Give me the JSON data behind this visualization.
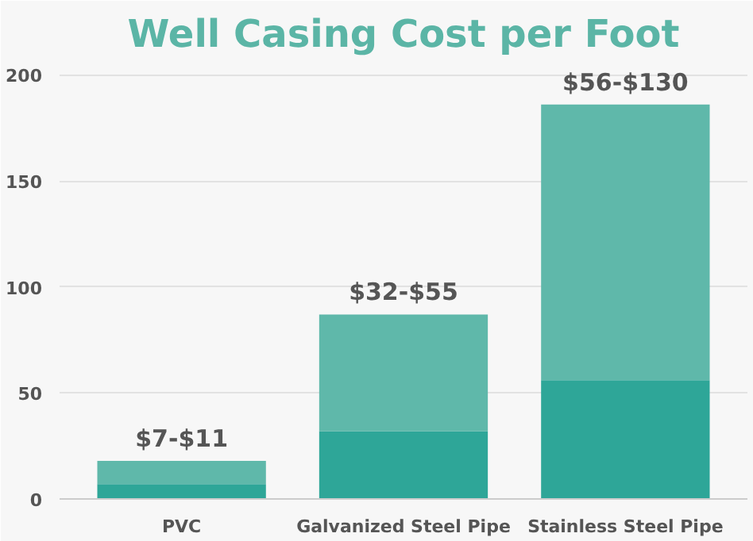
{
  "chart_data": {
    "type": "bar",
    "title": "Well Casing Cost per Foot",
    "categories": [
      "PVC",
      "Galvanized Steel Pipe",
      "Stainless Steel Pipe"
    ],
    "stacked": true,
    "series": [
      {
        "color": "#2ea698",
        "values": [
          7,
          32,
          56
        ]
      },
      {
        "color": "#5fb8aa",
        "values": [
          11,
          55,
          130
        ]
      }
    ],
    "totals": [
      "$7-$11",
      "$32-$55",
      "$56-$130"
    ],
    "ylim": [
      0,
      205
    ],
    "yticks": [
      0,
      50,
      100,
      150,
      200
    ],
    "grid": "y"
  }
}
